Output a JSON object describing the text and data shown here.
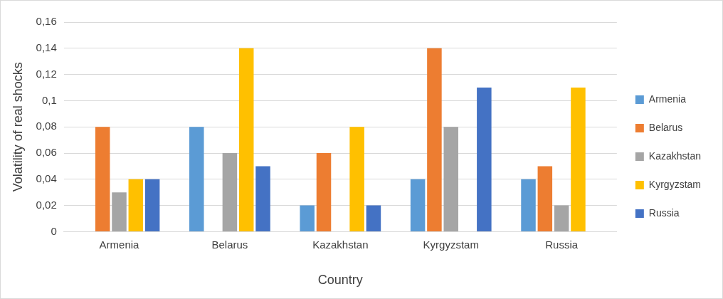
{
  "chart_data": {
    "type": "bar",
    "xlabel": "Country",
    "ylabel": "Volatility of real shocks",
    "categories": [
      "Armenia",
      "Belarus",
      "Kazakhstan",
      "Kyrgyzstam",
      "Russia"
    ],
    "series": [
      {
        "name": "Armenia",
        "color": "#5b9bd5",
        "values": [
          null,
          0.08,
          0.02,
          0.04,
          0.04
        ]
      },
      {
        "name": "Belarus",
        "color": "#ed7d31",
        "values": [
          0.08,
          null,
          0.06,
          0.14,
          0.05
        ]
      },
      {
        "name": "Kazakhstan",
        "color": "#a5a5a5",
        "values": [
          0.03,
          0.06,
          null,
          0.08,
          0.02
        ]
      },
      {
        "name": "Kyrgyzstam",
        "color": "#ffc000",
        "values": [
          0.04,
          0.14,
          0.08,
          null,
          0.11
        ]
      },
      {
        "name": "Russia",
        "color": "#4472c4",
        "values": [
          0.04,
          0.05,
          0.02,
          0.11,
          null
        ]
      }
    ],
    "ylim": [
      0,
      0.16
    ],
    "yticks": [
      {
        "value": 0,
        "label": "0"
      },
      {
        "value": 0.02,
        "label": "0,02"
      },
      {
        "value": 0.04,
        "label": "0,04"
      },
      {
        "value": 0.06,
        "label": "0,06"
      },
      {
        "value": 0.08,
        "label": "0,08"
      },
      {
        "value": 0.1,
        "label": "0,1"
      },
      {
        "value": 0.12,
        "label": "0,12"
      },
      {
        "value": 0.14,
        "label": "0,14"
      },
      {
        "value": 0.16,
        "label": "0,16"
      }
    ],
    "grid": "y",
    "legend": "right"
  }
}
